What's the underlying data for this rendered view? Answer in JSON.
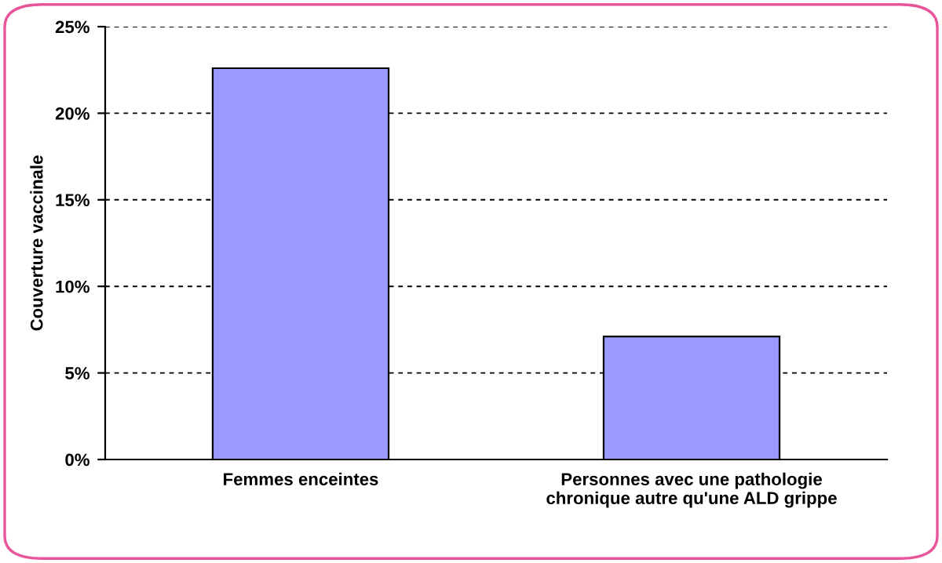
{
  "chart_data": {
    "type": "bar",
    "ylabel": "Couverture vaccinale",
    "categories": [
      "Femmes enceintes",
      "Personnes avec une pathologie\nchronique autre qu'une ALD grippe"
    ],
    "values": [
      22.6,
      7.1
    ],
    "color": "#9999ff",
    "ylim": [
      0,
      25
    ],
    "yticks": [
      {
        "value": 0,
        "label": "0%"
      },
      {
        "value": 5,
        "label": "5%"
      },
      {
        "value": 10,
        "label": "10%"
      },
      {
        "value": 15,
        "label": "15%"
      },
      {
        "value": 20,
        "label": "20%"
      },
      {
        "value": 25,
        "label": "25%"
      }
    ],
    "grid": "y"
  }
}
